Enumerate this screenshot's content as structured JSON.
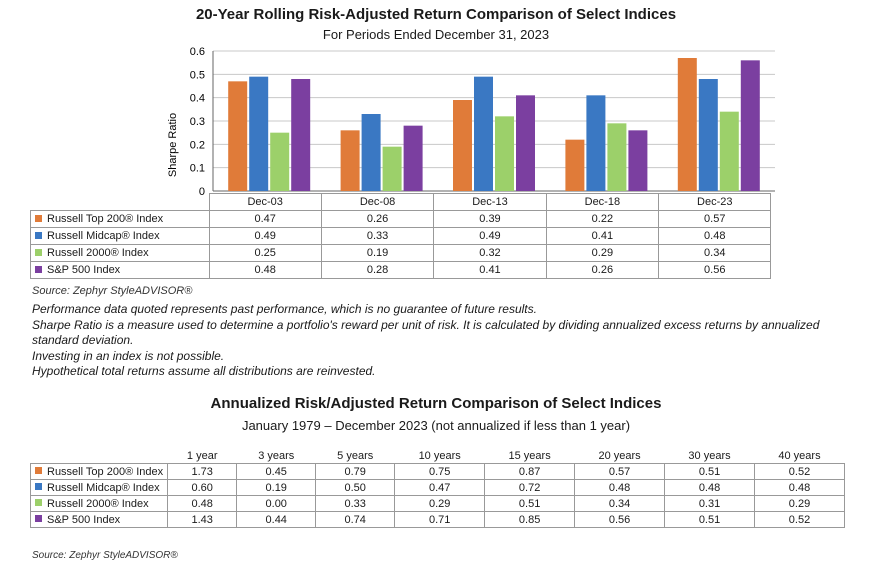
{
  "chart_data": [
    {
      "type": "bar",
      "title": "20-Year Rolling Risk-Adjusted Return Comparison of Select Indices",
      "subtitle": "For Periods Ended December 31, 2023",
      "ylabel": "Sharpe Ratio",
      "ylim": [
        0,
        0.6
      ],
      "yticks": [
        "0",
        "0.1",
        "0.2",
        "0.3",
        "0.4",
        "0.5",
        "0.6"
      ],
      "ytick_values": [
        0,
        0.1,
        0.2,
        0.3,
        0.4,
        0.5,
        0.6
      ],
      "grid": true,
      "categories": [
        "Dec-03",
        "Dec-08",
        "Dec-13",
        "Dec-18",
        "Dec-23"
      ],
      "series": [
        {
          "name": "Russell Top 200® Index",
          "color": "#e07b39",
          "values": [
            0.47,
            0.26,
            0.39,
            0.22,
            0.57
          ],
          "labels": [
            "0.47",
            "0.26",
            "0.39",
            "0.22",
            "0.57"
          ]
        },
        {
          "name": "Russell Midcap® Index",
          "color": "#3a78c3",
          "values": [
            0.49,
            0.33,
            0.49,
            0.41,
            0.48
          ],
          "labels": [
            "0.49",
            "0.33",
            "0.49",
            "0.41",
            "0.48"
          ]
        },
        {
          "name": "Russell 2000® Index",
          "color": "#9cd06a",
          "values": [
            0.25,
            0.19,
            0.32,
            0.29,
            0.34
          ],
          "labels": [
            "0.25",
            "0.19",
            "0.32",
            "0.29",
            "0.34"
          ]
        },
        {
          "name": "S&P 500 Index",
          "color": "#7b3fa0",
          "values": [
            0.48,
            0.28,
            0.41,
            0.26,
            0.56
          ],
          "labels": [
            "0.48",
            "0.28",
            "0.41",
            "0.26",
            "0.56"
          ]
        }
      ]
    },
    {
      "type": "table",
      "title": "Annualized Risk/Adjusted Return Comparison of Select Indices",
      "subtitle": "January 1979 – December 2023 (not annualized if less than 1 year)",
      "columns": [
        "1 year",
        "3 years",
        "5 years",
        "10 years",
        "15 years",
        "20 years",
        "30 years",
        "40 years"
      ],
      "rows": [
        {
          "name": "Russell Top 200® Index",
          "color": "#e07b39",
          "values": [
            "1.73",
            "0.45",
            "0.79",
            "0.75",
            "0.87",
            "0.57",
            "0.51",
            "0.52"
          ]
        },
        {
          "name": "Russell Midcap® Index",
          "color": "#3a78c3",
          "values": [
            "0.60",
            "0.19",
            "0.50",
            "0.47",
            "0.72",
            "0.48",
            "0.48",
            "0.48"
          ]
        },
        {
          "name": "Russell 2000® Index",
          "color": "#9cd06a",
          "values": [
            "0.48",
            "0.00",
            "0.33",
            "0.29",
            "0.51",
            "0.34",
            "0.31",
            "0.29"
          ]
        },
        {
          "name": "S&P 500 Index",
          "color": "#7b3fa0",
          "values": [
            "1.43",
            "0.44",
            "0.74",
            "0.71",
            "0.85",
            "0.56",
            "0.51",
            "0.52"
          ]
        }
      ]
    }
  ],
  "source1": "Source: Zephyr StyleADVISOR®",
  "notes": [
    "Performance data quoted represents past performance, which is no guarantee of future results.",
    "Sharpe Ratio is a measure used to determine a portfolio's reward per unit of risk. It is calculated by dividing annualized excess returns by annualized standard deviation.",
    "Investing in an index is not possible.",
    "Hypothetical total returns assume all distributions are reinvested."
  ],
  "source2": "Source: Zephyr StyleADVISOR®"
}
